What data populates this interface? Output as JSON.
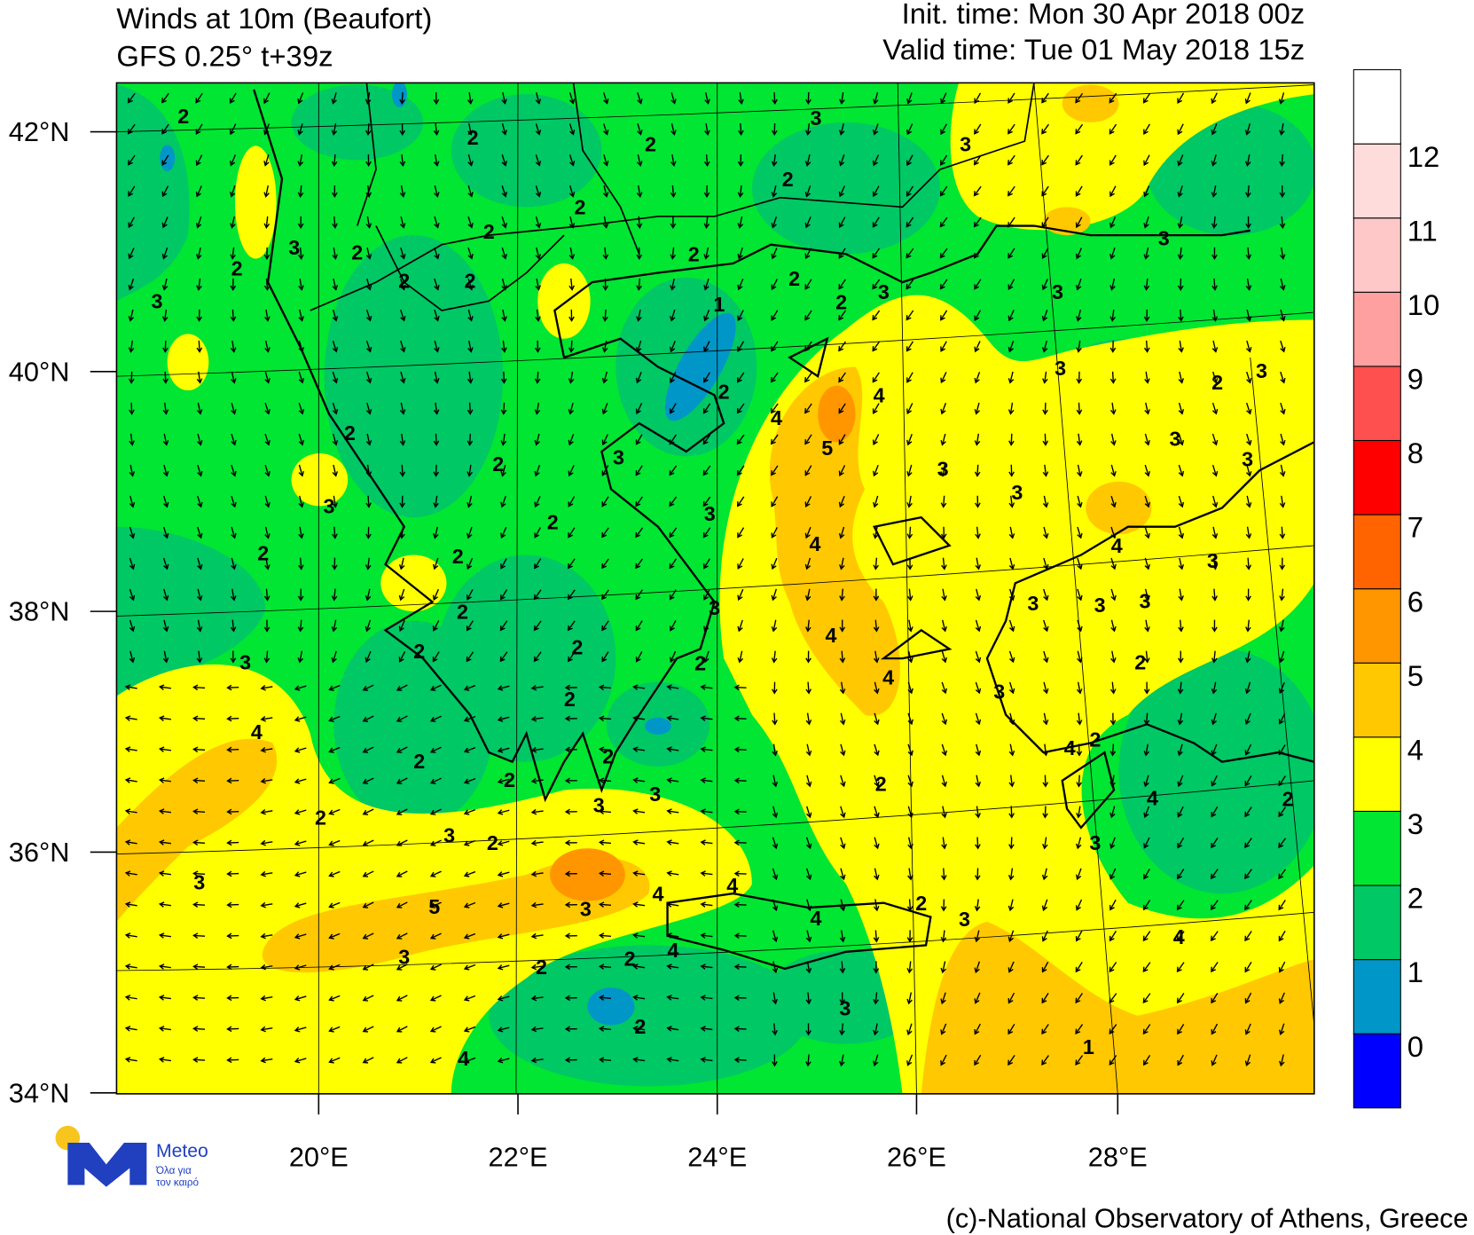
{
  "title": "Winds at 10m (Beaufort)",
  "model": "GFS 0.25° t+39z",
  "init_time": "Init. time: Mon 30 Apr 2018 00z",
  "valid_time": "Valid time: Tue 01 May 2018 15z",
  "lat_ticks": [
    "42°N",
    "40°N",
    "38°N",
    "36°N",
    "34°N"
  ],
  "lon_ticks": [
    "20°E",
    "22°E",
    "24°E",
    "26°E",
    "28°E"
  ],
  "colorbar": {
    "levels": [
      0,
      1,
      2,
      3,
      4,
      5,
      6,
      7,
      8,
      9,
      10,
      11,
      12
    ],
    "colors": [
      "#0000ff",
      "#0096c8",
      "#00c864",
      "#00e632",
      "#ffff00",
      "#ffc800",
      "#ff9600",
      "#ff6400",
      "#ff0000",
      "#ff5050",
      "#ffa0a0",
      "#ffc8c8",
      "#ffdcdc",
      "#ffffff"
    ]
  },
  "contour_labels": [
    2,
    2,
    2,
    3,
    2,
    3,
    2,
    2,
    2,
    3,
    2,
    3,
    2,
    2,
    2,
    2,
    2,
    3,
    1,
    3,
    3,
    3,
    2,
    3,
    2,
    4,
    4,
    5,
    2,
    2,
    3,
    3,
    3,
    3,
    3,
    3,
    3,
    2,
    4,
    4,
    3,
    2,
    2,
    2,
    3,
    3,
    3,
    3,
    4,
    2,
    2,
    2,
    3,
    4,
    2,
    3,
    2,
    4,
    4,
    2,
    2,
    2,
    2,
    2,
    3,
    3,
    4,
    2,
    2,
    3,
    2,
    3,
    3,
    4,
    4,
    3,
    5,
    4,
    2,
    3,
    4,
    3,
    4,
    2,
    2,
    3,
    2,
    1,
    4,
    3
  ],
  "logo": {
    "name": "Meteo",
    "tagline": [
      "Όλα για",
      "τον καιρό"
    ]
  },
  "credit": "(c)-National Observatory of Athens, Greece"
}
